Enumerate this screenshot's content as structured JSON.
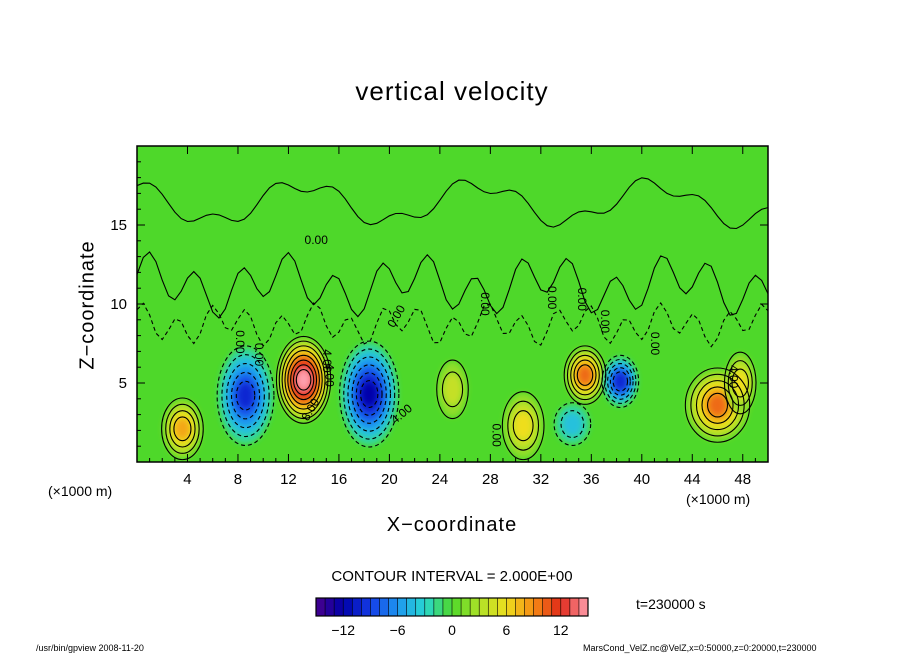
{
  "chart_data": {
    "type": "heatmap",
    "title": "vertical velocity",
    "xlabel": "X−coordinate",
    "ylabel": "Z−coordinate",
    "x_unit_left": "(×1000 m)",
    "x_unit_right": "(×1000 m)",
    "xlim": [
      0,
      50
    ],
    "ylim": [
      0,
      20
    ],
    "x_ticks": [
      4,
      8,
      12,
      16,
      20,
      24,
      28,
      32,
      36,
      40,
      44,
      48
    ],
    "y_ticks": [
      5,
      10,
      15
    ],
    "contour_interval_text": "CONTOUR INTERVAL = 2.000E+00",
    "time_text": "t=230000 s",
    "colorbar": {
      "min": -15,
      "max": 15,
      "ticks": [
        -12,
        -6,
        0,
        6,
        12
      ]
    },
    "contour_labels": [
      "0.00",
      "0.00",
      "0.00",
      "0.00",
      "4.00",
      "4.00",
      "8.00",
      "4.00",
      "4.00",
      "0.00",
      "0.00",
      "0.00",
      "0.00",
      "0.00",
      "0.00"
    ],
    "features": [
      {
        "x": 13.2,
        "z": 5.2,
        "value": 15
      },
      {
        "x": 3.6,
        "z": 2.1,
        "value": 8
      },
      {
        "x": 8.6,
        "z": 4.2,
        "value": -10
      },
      {
        "x": 18.4,
        "z": 4.3,
        "value": -11
      },
      {
        "x": 35.5,
        "z": 5.5,
        "value": 10
      },
      {
        "x": 38.3,
        "z": 5.1,
        "value": -9
      },
      {
        "x": 46.0,
        "z": 3.6,
        "value": 9
      },
      {
        "x": 47.8,
        "z": 5.0,
        "value": 6
      },
      {
        "x": 30.6,
        "z": 2.3,
        "value": 6
      },
      {
        "x": 34.5,
        "z": 2.4,
        "value": -4
      },
      {
        "x": 25.0,
        "z": 4.6,
        "value": 4
      }
    ]
  },
  "footer": {
    "left": "/usr/bin/gpview   2008-11-20",
    "right": "MarsCond_VelZ.nc@VelZ,x=0:50000,z=0:20000,t=230000"
  },
  "colors": {
    "background": "#ffffff",
    "field_base": "#4ed82a"
  }
}
